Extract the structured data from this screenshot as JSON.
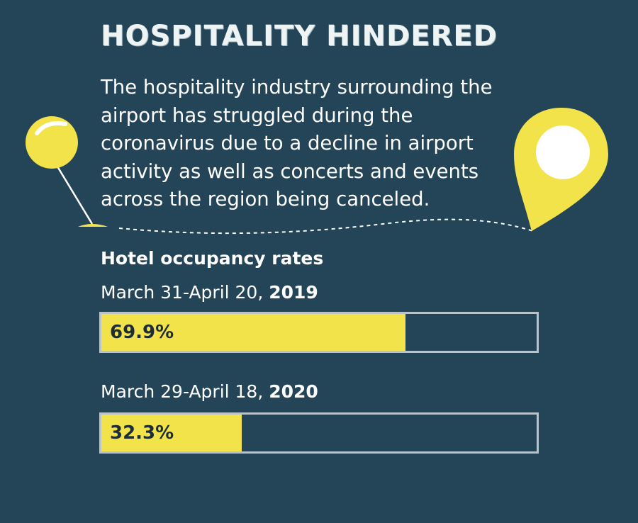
{
  "header": {
    "title": "HOSPITALITY HINDERED",
    "intro": "The hospitality industry surrounding the airport has struggled during the coronavirus due to a decline in airport activity as well as concerts and events across the region being canceled."
  },
  "colors": {
    "background": "#244457",
    "accent": "#f3e34a",
    "bar_border": "#b9c3c9"
  },
  "icons": [
    "pushpin-icon",
    "map-pin-icon"
  ],
  "chart_data": {
    "type": "bar",
    "title": "Hotel occupancy rates",
    "orientation": "horizontal",
    "xlim": [
      0,
      100
    ],
    "categories": [
      {
        "period": "March 31-April 20, ",
        "year": "2019"
      },
      {
        "period": "March 29-April 18, ",
        "year": "2020"
      }
    ],
    "values": [
      69.9,
      32.3
    ],
    "labels": [
      "69.9%",
      "32.3%"
    ],
    "unit": "%"
  }
}
